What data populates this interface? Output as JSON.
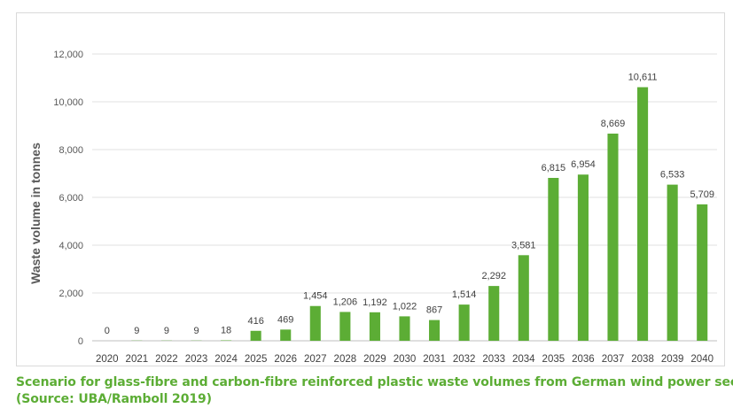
{
  "chart_data": {
    "type": "bar",
    "title": "",
    "xlabel": "",
    "ylabel": "Waste volume in tonnes",
    "ylim": [
      0,
      12000
    ],
    "yticks": [
      0,
      2000,
      4000,
      6000,
      8000,
      10000,
      12000
    ],
    "ytick_labels": [
      "0",
      "2,000",
      "4,000",
      "6,000",
      "8,000",
      "10,000",
      "12,000"
    ],
    "grid": true,
    "legend": "none",
    "bar_color": "#5cad35",
    "categories": [
      "2020",
      "2021",
      "2022",
      "2023",
      "2024",
      "2025",
      "2026",
      "2027",
      "2028",
      "2029",
      "2030",
      "2031",
      "2032",
      "2033",
      "2034",
      "2035",
      "2036",
      "2037",
      "2038",
      "2039",
      "2040"
    ],
    "values": [
      0,
      9,
      9,
      9,
      18,
      416,
      469,
      1454,
      1206,
      1192,
      1022,
      867,
      1514,
      2292,
      3581,
      6815,
      6954,
      8669,
      10611,
      6533,
      5709
    ],
    "data_labels": [
      "0",
      "9",
      "9",
      "9",
      "18",
      "416",
      "469",
      "1,454",
      "1,206",
      "1,192",
      "1,022",
      "867",
      "1,514",
      "2,292",
      "3,581",
      "6,815",
      "6,954",
      "8,669",
      "10,611",
      "6,533",
      "5,709"
    ]
  },
  "caption": {
    "line1": "Scenario for glass-fibre and carbon-fibre reinforced plastic waste volumes from German wind power sector",
    "line2": "(Source: UBA/Ramboll 2019)"
  }
}
